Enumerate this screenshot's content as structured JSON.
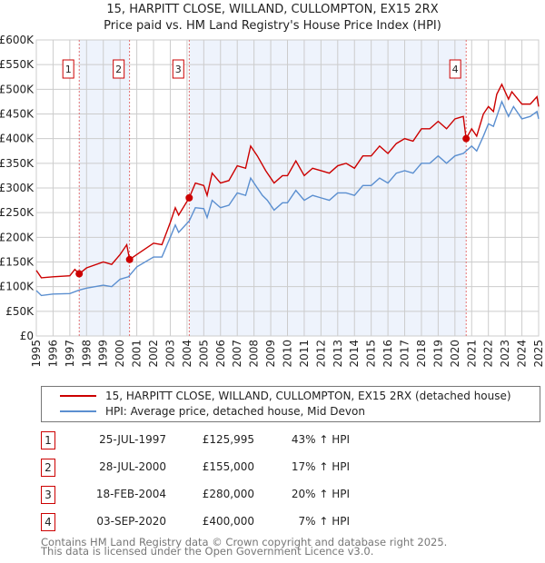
{
  "title": "15, HARPITT CLOSE, WILLAND, CULLOMPTON, EX15 2RX",
  "subtitle": "Price paid vs. HM Land Registry's House Price Index (HPI)",
  "colors": {
    "property": "#cc0000",
    "hpi": "#5b8fd0",
    "shade": "#eef3fc"
  },
  "chart_data": {
    "type": "line",
    "title": "15, HARPITT CLOSE, WILLAND, CULLOMPTON, EX15 2RX",
    "xlim": [
      1995,
      2025
    ],
    "ylim": [
      0,
      600000
    ],
    "x_ticks": [
      "1995",
      "1996",
      "1997",
      "1998",
      "1999",
      "2000",
      "2001",
      "2002",
      "2003",
      "2004",
      "2005",
      "2006",
      "2007",
      "2008",
      "2009",
      "2010",
      "2011",
      "2012",
      "2013",
      "2014",
      "2015",
      "2016",
      "2017",
      "2018",
      "2019",
      "2020",
      "2021",
      "2022",
      "2023",
      "2024",
      "2025"
    ],
    "y_ticks": [
      "£0",
      "£50K",
      "£100K",
      "£150K",
      "£200K",
      "£250K",
      "£300K",
      "£350K",
      "£400K",
      "£450K",
      "£500K",
      "£550K",
      "£600K"
    ],
    "grid": true,
    "series": [
      {
        "name": "15, HARPITT CLOSE, WILLAND, CULLOMPTON, EX15 2RX (detached house)",
        "color": "#cc0000",
        "points": [
          [
            1995,
            133
          ],
          [
            1995.3,
            118
          ],
          [
            1996,
            120
          ],
          [
            1997,
            122
          ],
          [
            1997.3,
            135
          ],
          [
            1997.56,
            126
          ],
          [
            1998,
            138
          ],
          [
            1999,
            150
          ],
          [
            1999.5,
            145
          ],
          [
            2000,
            165
          ],
          [
            2000.4,
            185
          ],
          [
            2000.57,
            155
          ],
          [
            2001,
            165
          ],
          [
            2002,
            188
          ],
          [
            2002.5,
            185
          ],
          [
            2003,
            230
          ],
          [
            2003.3,
            260
          ],
          [
            2003.5,
            245
          ],
          [
            2004.13,
            280
          ],
          [
            2004.5,
            310
          ],
          [
            2005,
            305
          ],
          [
            2005.2,
            285
          ],
          [
            2005.5,
            330
          ],
          [
            2006,
            310
          ],
          [
            2006.5,
            315
          ],
          [
            2007,
            345
          ],
          [
            2007.5,
            340
          ],
          [
            2007.8,
            385
          ],
          [
            2008.2,
            365
          ],
          [
            2008.7,
            335
          ],
          [
            2009.2,
            310
          ],
          [
            2009.7,
            325
          ],
          [
            2010,
            325
          ],
          [
            2010.5,
            355
          ],
          [
            2011,
            325
          ],
          [
            2011.5,
            340
          ],
          [
            2012,
            335
          ],
          [
            2012.5,
            330
          ],
          [
            2013,
            345
          ],
          [
            2013.5,
            350
          ],
          [
            2014,
            340
          ],
          [
            2014.5,
            365
          ],
          [
            2015,
            365
          ],
          [
            2015.5,
            385
          ],
          [
            2016,
            370
          ],
          [
            2016.5,
            390
          ],
          [
            2017,
            400
          ],
          [
            2017.5,
            395
          ],
          [
            2018,
            420
          ],
          [
            2018.5,
            420
          ],
          [
            2019,
            435
          ],
          [
            2019.5,
            420
          ],
          [
            2020,
            440
          ],
          [
            2020.5,
            445
          ],
          [
            2020.67,
            400
          ],
          [
            2021,
            420
          ],
          [
            2021.3,
            405
          ],
          [
            2021.7,
            450
          ],
          [
            2022,
            465
          ],
          [
            2022.3,
            455
          ],
          [
            2022.5,
            490
          ],
          [
            2022.8,
            510
          ],
          [
            2023.2,
            480
          ],
          [
            2023.4,
            495
          ],
          [
            2024,
            470
          ],
          [
            2024.5,
            470
          ],
          [
            2024.9,
            485
          ],
          [
            2025,
            465
          ]
        ]
      },
      {
        "name": "HPI: Average price, detached house, Mid Devon",
        "color": "#5b8fd0",
        "points": [
          [
            1995,
            92
          ],
          [
            1995.3,
            82
          ],
          [
            1996,
            85
          ],
          [
            1997,
            86
          ],
          [
            1997.56,
            93
          ],
          [
            1998,
            97
          ],
          [
            1999,
            103
          ],
          [
            1999.5,
            100
          ],
          [
            2000,
            115
          ],
          [
            2000.5,
            120
          ],
          [
            2001,
            140
          ],
          [
            2002,
            160
          ],
          [
            2002.5,
            160
          ],
          [
            2003,
            200
          ],
          [
            2003.3,
            225
          ],
          [
            2003.5,
            210
          ],
          [
            2004.13,
            233
          ],
          [
            2004.5,
            260
          ],
          [
            2005,
            258
          ],
          [
            2005.2,
            240
          ],
          [
            2005.5,
            275
          ],
          [
            2006,
            260
          ],
          [
            2006.5,
            265
          ],
          [
            2007,
            290
          ],
          [
            2007.5,
            285
          ],
          [
            2007.8,
            320
          ],
          [
            2008.5,
            285
          ],
          [
            2008.8,
            275
          ],
          [
            2009.2,
            255
          ],
          [
            2009.7,
            270
          ],
          [
            2010,
            270
          ],
          [
            2010.5,
            295
          ],
          [
            2011,
            275
          ],
          [
            2011.5,
            285
          ],
          [
            2012,
            280
          ],
          [
            2012.5,
            275
          ],
          [
            2013,
            290
          ],
          [
            2013.5,
            290
          ],
          [
            2014,
            285
          ],
          [
            2014.5,
            305
          ],
          [
            2015,
            305
          ],
          [
            2015.5,
            320
          ],
          [
            2016,
            310
          ],
          [
            2016.5,
            330
          ],
          [
            2017,
            335
          ],
          [
            2017.5,
            330
          ],
          [
            2018,
            350
          ],
          [
            2018.5,
            350
          ],
          [
            2019,
            365
          ],
          [
            2019.5,
            350
          ],
          [
            2020,
            365
          ],
          [
            2020.5,
            370
          ],
          [
            2021,
            385
          ],
          [
            2021.3,
            375
          ],
          [
            2021.7,
            405
          ],
          [
            2022,
            430
          ],
          [
            2022.3,
            425
          ],
          [
            2022.5,
            445
          ],
          [
            2022.8,
            475
          ],
          [
            2023.2,
            445
          ],
          [
            2023.5,
            465
          ],
          [
            2024,
            440
          ],
          [
            2024.5,
            445
          ],
          [
            2024.9,
            455
          ],
          [
            2025,
            440
          ]
        ]
      }
    ],
    "sales": [
      {
        "label": "1",
        "x": 1997.56,
        "value": 125995
      },
      {
        "label": "2",
        "x": 2000.57,
        "value": 155000
      },
      {
        "label": "3",
        "x": 2004.13,
        "value": 280000
      },
      {
        "label": "4",
        "x": 2020.67,
        "value": 400000
      }
    ]
  },
  "legend": {
    "property": "15, HARPITT CLOSE, WILLAND, CULLOMPTON, EX15 2RX (detached house)",
    "hpi": "HPI: Average price, detached house, Mid Devon"
  },
  "transactions": [
    {
      "num": "1",
      "date": "25-JUL-1997",
      "price": "£125,995",
      "hpi": "43% ↑ HPI"
    },
    {
      "num": "2",
      "date": "28-JUL-2000",
      "price": "£155,000",
      "hpi": "17% ↑ HPI"
    },
    {
      "num": "3",
      "date": "18-FEB-2004",
      "price": "£280,000",
      "hpi": "20% ↑ HPI"
    },
    {
      "num": "4",
      "date": "03-SEP-2020",
      "price": "£400,000",
      "hpi": "7% ↑ HPI"
    }
  ],
  "footer": {
    "line1": "Contains HM Land Registry data © Crown copyright and database right 2025.",
    "line2": "This data is licensed under the Open Government Licence v3.0."
  }
}
